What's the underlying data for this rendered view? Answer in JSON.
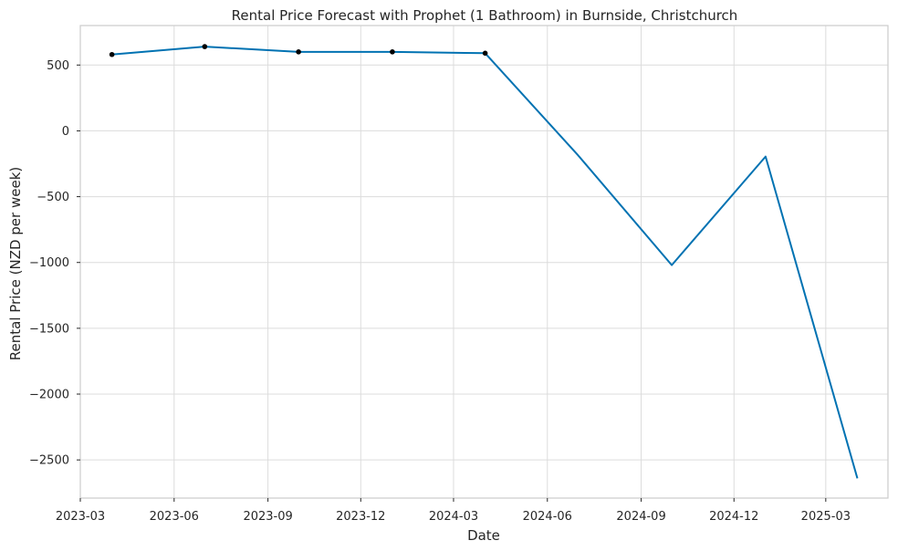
{
  "chart_data": {
    "type": "line",
    "title": "Rental Price Forecast with Prophet (1 Bathroom) in Burnside, Christchurch",
    "xlabel": "Date",
    "ylabel": "Rental Price (NZD per week)",
    "x_tick_labels": [
      "2023-03",
      "2023-06",
      "2023-09",
      "2023-12",
      "2024-03",
      "2024-06",
      "2024-09",
      "2024-12",
      "2025-03"
    ],
    "y_ticks": [
      500,
      0,
      -500,
      -1000,
      -1500,
      -2000,
      -2500
    ],
    "y_tick_labels": [
      "500",
      "0",
      "−500",
      "−1000",
      "−1500",
      "−2000",
      "−2500"
    ],
    "xlim": [
      "2023-03-01",
      "2025-05-01"
    ],
    "ylim": [
      -2790,
      800
    ],
    "grid": true,
    "series": [
      {
        "style": "forecast-line",
        "color": "#0072B2",
        "x": [
          "2023-04-01",
          "2023-07-01",
          "2023-10-01",
          "2024-01-01",
          "2024-04-01",
          "2024-07-01",
          "2024-10-01",
          "2025-01-01",
          "2025-04-01"
        ],
        "y": [
          580,
          640,
          600,
          600,
          590,
          -185,
          -1020,
          -195,
          -2640
        ]
      },
      {
        "style": "observed-points",
        "color": "#000000",
        "x": [
          "2023-04-01",
          "2023-07-01",
          "2023-10-01",
          "2024-01-01",
          "2024-04-01"
        ],
        "y": [
          580,
          640,
          600,
          600,
          590
        ]
      }
    ]
  }
}
